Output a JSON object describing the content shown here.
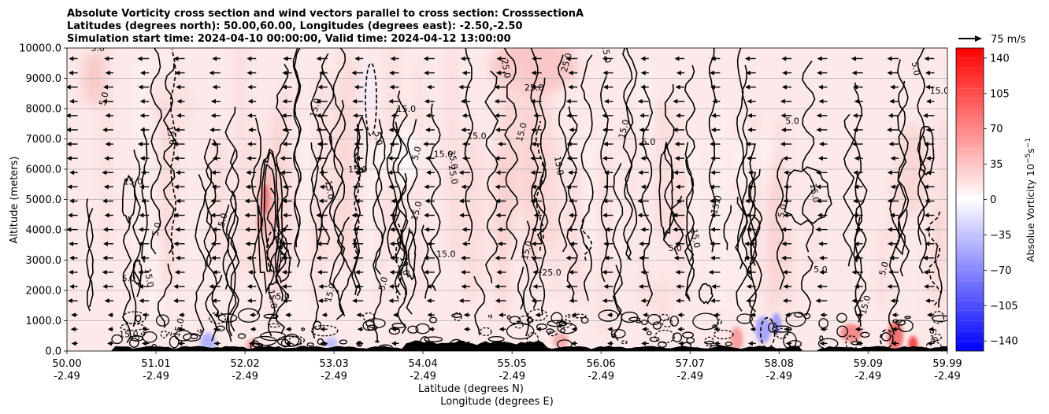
{
  "chart_data": {
    "type": "contour",
    "title_lines": [
      "Absolute Vorticity cross section and wind vectors parallel to cross section: CrosssectionA",
      "Latitudes (degrees north): 50.00,60.00, Longitudes (degrees east): -2.50,-2.50",
      "Simulation start time: 2024-04-10 00:00:00, Valid time: 2024-04-12 13:00:00"
    ],
    "ylabel": "Altitude (meters)",
    "xlabel_lines": [
      "Latitude (degrees N)",
      "Longitude (degrees E)"
    ],
    "ylim": [
      0,
      10000
    ],
    "y_ticks": [
      0,
      1000,
      2000,
      3000,
      4000,
      5000,
      6000,
      7000,
      8000,
      9000,
      10000
    ],
    "y_tick_labels": [
      "0.0",
      "1000.0",
      "2000.0",
      "3000.0",
      "4000.0",
      "5000.0",
      "6000.0",
      "7000.0",
      "8000.0",
      "9000.0",
      "10000.0"
    ],
    "xlim": [
      50.0,
      59.99
    ],
    "x_ticks": [
      {
        "lat": 50.0,
        "lat_label": "50.00",
        "lon_label": "-2.49"
      },
      {
        "lat": 51.01,
        "lat_label": "51.01",
        "lon_label": "-2.49"
      },
      {
        "lat": 52.02,
        "lat_label": "52.02",
        "lon_label": "-2.49"
      },
      {
        "lat": 53.03,
        "lat_label": "53.03",
        "lon_label": "-2.49"
      },
      {
        "lat": 54.04,
        "lat_label": "54.04",
        "lon_label": "-2.49"
      },
      {
        "lat": 55.05,
        "lat_label": "55.05",
        "lon_label": "-2.49"
      },
      {
        "lat": 56.06,
        "lat_label": "56.06",
        "lon_label": "-2.49"
      },
      {
        "lat": 57.07,
        "lat_label": "57.07",
        "lon_label": "-2.49"
      },
      {
        "lat": 58.08,
        "lat_label": "58.08",
        "lon_label": "-2.49"
      },
      {
        "lat": 59.09,
        "lat_label": "59.09",
        "lon_label": "-2.49"
      },
      {
        "lat": 59.99,
        "lat_label": "59.99",
        "lon_label": "-2.49"
      }
    ],
    "grid": "horizontal",
    "colorbar": {
      "label": "Absolue Vorticity 10",
      "label_exp1": "−5",
      "label_mid": "s",
      "label_exp2": "−1",
      "ticks": [
        140,
        105,
        70,
        35,
        0,
        -35,
        -70,
        -105,
        -140
      ],
      "tick_labels": [
        "140",
        "105",
        "70",
        "35",
        "0",
        "−35",
        "−70",
        "−105",
        "−140"
      ],
      "range": [
        -150,
        150
      ],
      "colormap": "bwr",
      "color_low": "#0000ff",
      "color_mid": "#ffffff",
      "color_high": "#ff0000"
    },
    "quiver_key": {
      "label": "75 m/s",
      "speed": 75
    },
    "wind_direction": "left",
    "contour_levels": [
      -15,
      5,
      15,
      25,
      35
    ],
    "contour_labels": [
      {
        "text": "5.0",
        "lat": 50.35,
        "alt": 9900
      },
      {
        "text": "5.0",
        "lat": 50.45,
        "alt": 8300
      },
      {
        "text": "15.0",
        "lat": 51.15,
        "alt": 7100
      },
      {
        "text": "15.0",
        "lat": 50.75,
        "alt": 5500
      },
      {
        "text": "5.0",
        "lat": 51.05,
        "alt": 4000
      },
      {
        "text": "15.0",
        "lat": 50.9,
        "alt": 2400
      },
      {
        "text": "5.0",
        "lat": 50.7,
        "alt": 2300
      },
      {
        "text": "5.0",
        "lat": 51.8,
        "alt": 4300
      },
      {
        "text": "-15.0",
        "lat": 52.4,
        "alt": 3400
      },
      {
        "text": "5.0",
        "lat": 52.45,
        "alt": 1700
      },
      {
        "text": "15.0",
        "lat": 52.85,
        "alt": 8000
      },
      {
        "text": "15.0",
        "lat": 52.95,
        "alt": 5300
      },
      {
        "text": "15.0",
        "lat": 53.3,
        "alt": 5900
      },
      {
        "text": "15.0",
        "lat": 53.02,
        "alt": 1900
      },
      {
        "text": "5.0",
        "lat": 53.5,
        "alt": 7000
      },
      {
        "text": "15.0",
        "lat": 53.85,
        "alt": 7900
      },
      {
        "text": "5.0",
        "lat": 54.0,
        "alt": 6500
      },
      {
        "text": "35.0",
        "lat": 54.35,
        "alt": 6300
      },
      {
        "text": "15.0",
        "lat": 54.65,
        "alt": 7000
      },
      {
        "text": "15.0",
        "lat": 55.19,
        "alt": 7200
      },
      {
        "text": "25.0",
        "lat": 54.95,
        "alt": 9300
      },
      {
        "text": "25.0",
        "lat": 55.3,
        "alt": 8600
      },
      {
        "text": "25.0",
        "lat": 55.7,
        "alt": 9500
      },
      {
        "text": "25.0",
        "lat": 56.09,
        "alt": 9800
      },
      {
        "text": "15.0",
        "lat": 54.27,
        "alt": 6400
      },
      {
        "text": "15.0",
        "lat": 54.0,
        "alt": 4600
      },
      {
        "text": "25.0",
        "lat": 54.35,
        "alt": 5800
      },
      {
        "text": "15.0",
        "lat": 54.3,
        "alt": 3100
      },
      {
        "text": "5.0",
        "lat": 53.62,
        "alt": 2200
      },
      {
        "text": "15.0",
        "lat": 53.8,
        "alt": 2800
      },
      {
        "text": "25.0",
        "lat": 55.5,
        "alt": 2500
      },
      {
        "text": "15.0",
        "lat": 55.25,
        "alt": 3300
      },
      {
        "text": "15.0",
        "lat": 55.55,
        "alt": 6100
      },
      {
        "text": "5.0",
        "lat": 56.9,
        "alt": 3300
      },
      {
        "text": "15.0",
        "lat": 57.4,
        "alt": 4800
      },
      {
        "text": "15.0",
        "lat": 57.1,
        "alt": 3700
      },
      {
        "text": "5.0",
        "lat": 58.23,
        "alt": 7500
      },
      {
        "text": "5.0",
        "lat": 58.15,
        "alt": 4600
      },
      {
        "text": "15.0",
        "lat": 58.45,
        "alt": 5200
      },
      {
        "text": "5.0",
        "lat": 58.55,
        "alt": 2600
      },
      {
        "text": "5.0",
        "lat": 59.3,
        "alt": 2700
      },
      {
        "text": "5.0",
        "lat": 59.6,
        "alt": 9300
      },
      {
        "text": "15.0",
        "lat": 59.9,
        "alt": 8500
      },
      {
        "text": "15.0",
        "lat": 59.09,
        "alt": 1500
      },
      {
        "text": "5.0",
        "lat": 59.8,
        "alt": 500
      },
      {
        "text": "15.0",
        "lat": 50.7,
        "alt": 450
      },
      {
        "text": "15.0",
        "lat": 51.3,
        "alt": 750
      },
      {
        "text": "15.0",
        "lat": 52.3,
        "alt": 1700
      },
      {
        "text": "5.0",
        "lat": 56.6,
        "alt": 6800
      },
      {
        "text": "15.0",
        "lat": 56.35,
        "alt": 7300
      }
    ]
  }
}
